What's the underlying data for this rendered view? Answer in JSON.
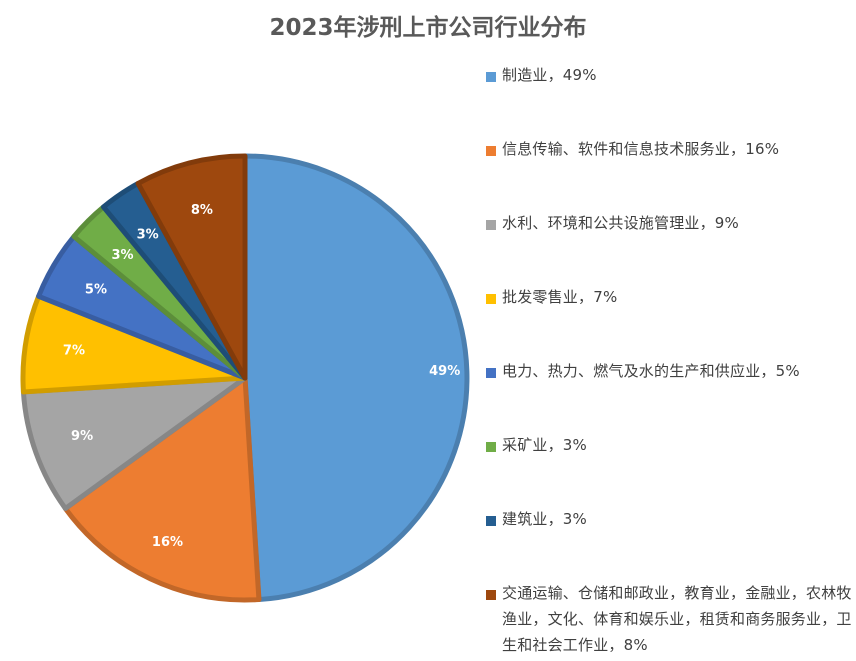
{
  "chart_data": {
    "type": "pie",
    "title": "2023年涉刑上市公司行业分布",
    "legend_position": "right",
    "slices": [
      {
        "name": "制造业",
        "value": 49,
        "label": "49%",
        "legend": "制造业，49%",
        "color": "#5B9BD5"
      },
      {
        "name": "信息传输、软件和信息技术服务业",
        "value": 16,
        "label": "16%",
        "legend": "信息传输、软件和信息技术服务业，16%",
        "color": "#ED7D31"
      },
      {
        "name": "水利、环境和公共设施管理业",
        "value": 9,
        "label": "9%",
        "legend": "水利、环境和公共设施管理业，9%",
        "color": "#A5A5A5"
      },
      {
        "name": "批发零售业",
        "value": 7,
        "label": "7%",
        "legend": "批发零售业，7%",
        "color": "#FFC000"
      },
      {
        "name": "电力、热力、燃气及水的生产和供应业",
        "value": 5,
        "label": "5%",
        "legend": "电力、热力、燃气及水的生产和供应业，5%",
        "color": "#4472C4"
      },
      {
        "name": "采矿业",
        "value": 3,
        "label": "3%",
        "legend": "采矿业，3%",
        "color": "#70AD47"
      },
      {
        "name": "建筑业",
        "value": 3,
        "label": "3%",
        "legend": "建筑业，3%",
        "color": "#255E91"
      },
      {
        "name": "交通运输、仓储和邮政业，教育业，金融业，农林牧渔业，文化、体育和娱乐业，租赁和商务服务业，卫生和社会工作业",
        "value": 8,
        "label": "8%",
        "legend": "交通运输、仓储和邮政业，教育业，金融业，农林牧渔业，文化、体育和娱乐业，租赁和商务服务业，卫生和社会工作业，8%",
        "color": "#9E480E"
      }
    ]
  }
}
